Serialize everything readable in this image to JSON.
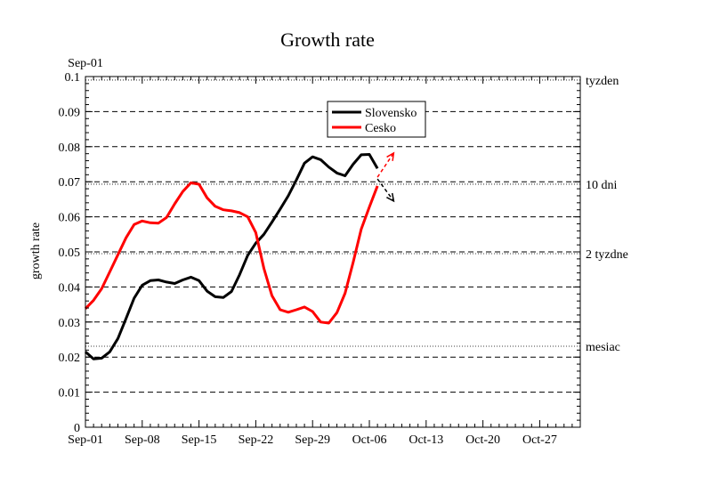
{
  "chart_data": {
    "type": "line",
    "title": "Growth rate",
    "ylabel": "growth rate",
    "xlabel": "",
    "top_left_label": "Sep-01",
    "xlim": [
      "2020-09-01",
      "2020-11-01"
    ],
    "ylim": [
      0,
      0.1
    ],
    "x_ticks": [
      "Sep-01",
      "Sep-08",
      "Sep-15",
      "Sep-22",
      "Sep-29",
      "Oct-06",
      "Oct-13",
      "Oct-20",
      "Oct-27"
    ],
    "x_tick_dates": [
      "2020-09-01",
      "2020-09-08",
      "2020-09-15",
      "2020-09-22",
      "2020-09-29",
      "2020-10-06",
      "2020-10-13",
      "2020-10-20",
      "2020-10-27"
    ],
    "y_ticks": [
      "0",
      "0.01",
      "0.02",
      "0.03",
      "0.04",
      "0.05",
      "0.06",
      "0.07",
      "0.08",
      "0.09",
      "0.1"
    ],
    "y_tick_values": [
      0,
      0.01,
      0.02,
      0.03,
      0.04,
      0.05,
      0.06,
      0.07,
      0.08,
      0.09,
      0.1
    ],
    "grid": "horizontal dashed",
    "legend_position": "top-right",
    "reference_lines": [
      {
        "label": "tyzden",
        "y": 0.099
      },
      {
        "label": "10 dni",
        "y": 0.0693
      },
      {
        "label": "2 tyzdne",
        "y": 0.0495
      },
      {
        "label": "mesiac",
        "y": 0.0231
      }
    ],
    "series": [
      {
        "name": "Slovensko",
        "color": "#000000",
        "x": [
          "2020-09-01",
          "2020-09-02",
          "2020-09-03",
          "2020-09-04",
          "2020-09-05",
          "2020-09-06",
          "2020-09-07",
          "2020-09-08",
          "2020-09-09",
          "2020-09-10",
          "2020-09-11",
          "2020-09-12",
          "2020-09-13",
          "2020-09-14",
          "2020-09-15",
          "2020-09-16",
          "2020-09-17",
          "2020-09-18",
          "2020-09-19",
          "2020-09-20",
          "2020-09-21",
          "2020-09-22",
          "2020-09-23",
          "2020-09-24",
          "2020-09-25",
          "2020-09-26",
          "2020-09-27",
          "2020-09-28",
          "2020-09-29",
          "2020-09-30",
          "2020-10-01",
          "2020-10-02",
          "2020-10-03",
          "2020-10-04",
          "2020-10-05",
          "2020-10-06",
          "2020-10-07"
        ],
        "y": [
          0.0215,
          0.0195,
          0.0197,
          0.0215,
          0.0253,
          0.031,
          0.0368,
          0.0405,
          0.0418,
          0.042,
          0.0414,
          0.041,
          0.042,
          0.0428,
          0.0418,
          0.0388,
          0.0372,
          0.037,
          0.0387,
          0.0435,
          0.049,
          0.0525,
          0.055,
          0.0585,
          0.0622,
          0.066,
          0.0705,
          0.0753,
          0.0771,
          0.0763,
          0.0742,
          0.0725,
          0.0717,
          0.075,
          0.0777,
          0.0778,
          0.0738
        ],
        "trend_arrow": {
          "from": [
            "2020-10-07",
            0.0708
          ],
          "to": [
            "2020-10-09",
            0.0645
          ],
          "style": "dashed"
        }
      },
      {
        "name": "Cesko",
        "color": "#ff0000",
        "x": [
          "2020-09-01",
          "2020-09-02",
          "2020-09-03",
          "2020-09-04",
          "2020-09-05",
          "2020-09-06",
          "2020-09-07",
          "2020-09-08",
          "2020-09-09",
          "2020-09-10",
          "2020-09-11",
          "2020-09-12",
          "2020-09-13",
          "2020-09-14",
          "2020-09-15",
          "2020-09-16",
          "2020-09-17",
          "2020-09-18",
          "2020-09-19",
          "2020-09-20",
          "2020-09-21",
          "2020-09-22",
          "2020-09-23",
          "2020-09-24",
          "2020-09-25",
          "2020-09-26",
          "2020-09-27",
          "2020-09-28",
          "2020-09-29",
          "2020-09-30",
          "2020-10-01",
          "2020-10-02",
          "2020-10-03",
          "2020-10-04",
          "2020-10-05",
          "2020-10-06",
          "2020-10-07"
        ],
        "y": [
          0.0338,
          0.0362,
          0.0395,
          0.0443,
          0.0492,
          0.054,
          0.0578,
          0.0588,
          0.0583,
          0.0582,
          0.0598,
          0.0637,
          0.0672,
          0.0697,
          0.0693,
          0.0654,
          0.063,
          0.062,
          0.0617,
          0.0612,
          0.06,
          0.0555,
          0.0453,
          0.0375,
          0.0335,
          0.0328,
          0.0335,
          0.0343,
          0.033,
          0.03,
          0.0297,
          0.0327,
          0.0382,
          0.047,
          0.0565,
          0.0628,
          0.0688
        ],
        "trend_arrow": {
          "from": [
            "2020-10-07",
            0.0713
          ],
          "to": [
            "2020-10-09",
            0.0782
          ],
          "style": "dashed"
        }
      }
    ]
  }
}
